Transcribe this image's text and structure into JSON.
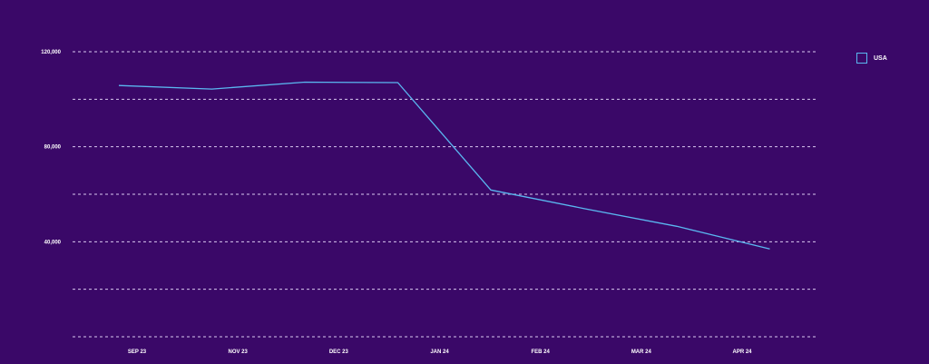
{
  "colors": {
    "background": "#3a0868",
    "grid": "#d8c8ef",
    "series": "#5ab7f0",
    "text": "#ffffff"
  },
  "chart_data": {
    "type": "line",
    "title": "",
    "xlabel": "",
    "ylabel": "",
    "ylim": [
      0,
      120000
    ],
    "y_ticks": [
      {
        "value": 120000,
        "label": "120,000"
      },
      {
        "value": 100000,
        "label": ""
      },
      {
        "value": 80000,
        "label": "80,000"
      },
      {
        "value": 60000,
        "label": ""
      },
      {
        "value": 40000,
        "label": "40,000"
      },
      {
        "value": 20000,
        "label": ""
      },
      {
        "value": 0,
        "label": ""
      }
    ],
    "x_ticks": [
      "SEP 23",
      "NOV 23",
      "DEC 23",
      "JAN 24",
      "FEB 24",
      "MAR 24",
      "APR 24"
    ],
    "grid": true,
    "grid_style": "dashed",
    "legend_position": "top-right",
    "series": [
      {
        "name": "USA",
        "color": "#5ab7f0",
        "x": [
          "2023-09",
          "2023-10",
          "2023-11",
          "2023-12",
          "2024-01",
          "2024-02",
          "2024-03",
          "2024-04"
        ],
        "values": [
          105800,
          104300,
          107200,
          107000,
          61800,
          54000,
          46500,
          37000
        ]
      }
    ]
  }
}
